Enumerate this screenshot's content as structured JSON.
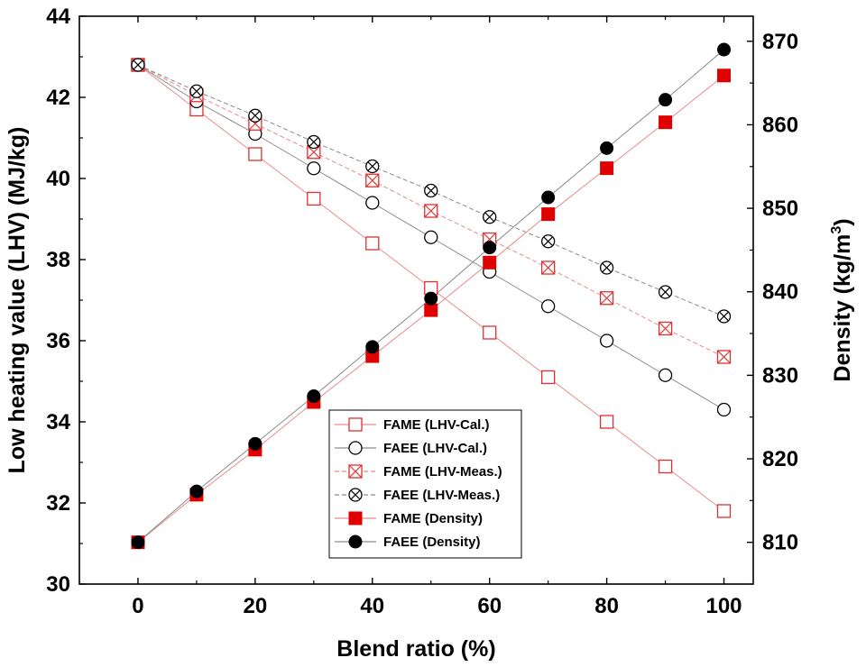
{
  "chart_data": {
    "type": "scatter",
    "xlabel": "Blend ratio (%)",
    "ylabel_left": "Low heating value (LHV) (MJ/kg)",
    "ylabel_right_main": "Density (kg/m",
    "ylabel_right_sup": "3",
    "ylabel_right_close": ")",
    "xlim": [
      -10,
      105
    ],
    "ylim_left": [
      30,
      44
    ],
    "ylim_right": [
      805,
      873
    ],
    "x_ticks": [
      0,
      20,
      40,
      60,
      80,
      100
    ],
    "y_left_ticks": [
      30,
      32,
      34,
      36,
      38,
      40,
      42,
      44
    ],
    "y_right_ticks": [
      810,
      820,
      830,
      840,
      850,
      860,
      870
    ],
    "x": [
      0,
      10,
      20,
      30,
      40,
      50,
      60,
      70,
      80,
      90,
      100
    ],
    "grid": false,
    "legend_position": "bottom-center",
    "series": [
      {
        "name": "FAME (LHV-Cal.)",
        "axis": "left",
        "marker": "square-open",
        "color": "#e03030",
        "line": "solid",
        "values": [
          42.8,
          41.7,
          40.6,
          39.5,
          38.4,
          37.3,
          36.2,
          35.1,
          34.0,
          32.9,
          31.8
        ]
      },
      {
        "name": "FAEE (LHV-Cal.)",
        "axis": "left",
        "marker": "circle-open",
        "color": "#000000",
        "line": "solid",
        "values": [
          42.8,
          41.9,
          41.1,
          40.25,
          39.4,
          38.55,
          37.7,
          36.85,
          36.0,
          35.15,
          34.3
        ]
      },
      {
        "name": "FAME (LHV-Meas.)",
        "axis": "left",
        "marker": "square-x",
        "color": "#e03030",
        "line": "dashed",
        "values": [
          42.8,
          42.05,
          41.35,
          40.65,
          39.95,
          39.2,
          38.5,
          37.8,
          37.05,
          36.3,
          35.6
        ]
      },
      {
        "name": "FAEE (LHV-Meas.)",
        "axis": "left",
        "marker": "circle-x",
        "color": "#000000",
        "line": "dashed",
        "values": [
          42.8,
          42.15,
          41.55,
          40.9,
          40.3,
          39.7,
          39.05,
          38.45,
          37.8,
          37.2,
          36.6
        ]
      },
      {
        "name": "FAME (Density)",
        "axis": "right",
        "marker": "square-filled",
        "color": "#e00000",
        "line": "solid",
        "values": [
          810,
          815.7,
          821.1,
          826.8,
          832.3,
          837.8,
          843.5,
          849.3,
          854.8,
          860.3,
          865.9
        ]
      },
      {
        "name": "FAEE (Density)",
        "axis": "right",
        "marker": "circle-filled",
        "color": "#000000",
        "line": "solid",
        "values": [
          810,
          816.1,
          821.8,
          827.5,
          833.4,
          839.2,
          845.3,
          851.3,
          857.2,
          863.0,
          869.0
        ]
      }
    ]
  }
}
